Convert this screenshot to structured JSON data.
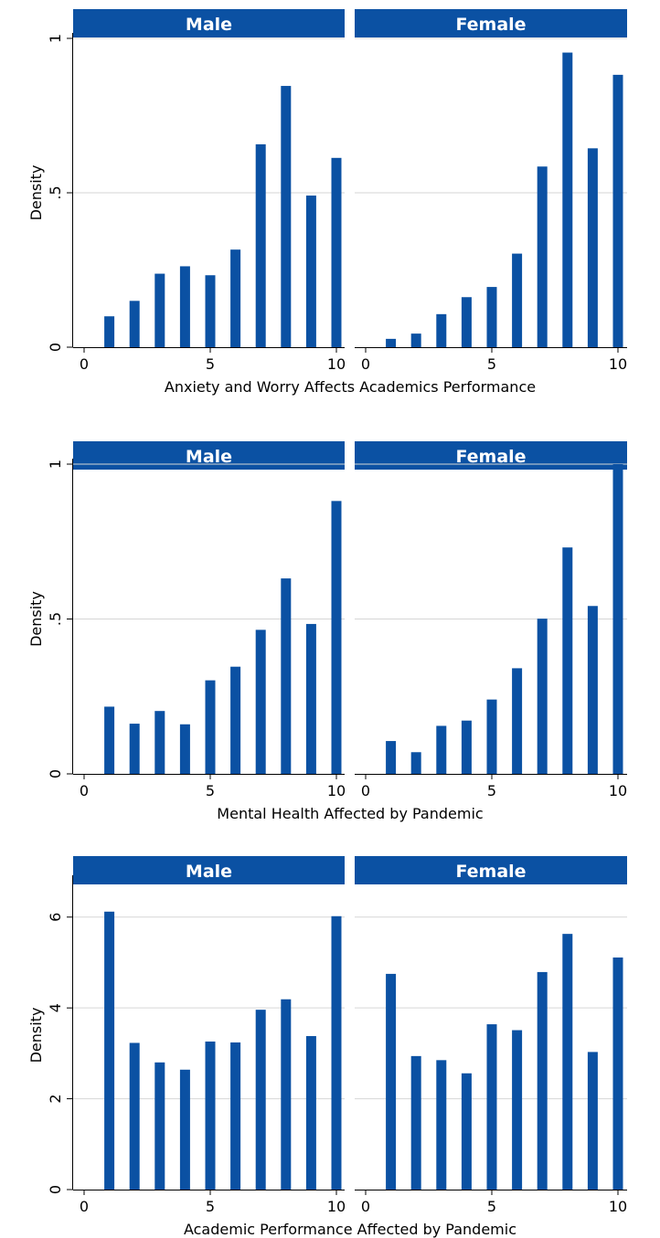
{
  "figure": {
    "bar_color": "#0b51a3",
    "header_color": "#0b51a3",
    "grid_color": "#d6d6d6",
    "background": "#ffffff"
  },
  "chart_data": [
    {
      "type": "bar",
      "xlabel": "Anxiety and Worry Affects Academics Performance",
      "ylabel": "Density",
      "xlim": [
        -0.5,
        10.4
      ],
      "ylim": [
        0,
        0.1
      ],
      "xticks": [
        0,
        5,
        10
      ],
      "xtick_labels": [
        "0",
        "5",
        "10"
      ],
      "yticks": [
        0,
        0.05,
        0.1
      ],
      "ytick_labels": [
        "0",
        ".5",
        "1"
      ],
      "grid": true,
      "categories": [
        1,
        2,
        3,
        4,
        5,
        6,
        7,
        8,
        9,
        10
      ],
      "series": [
        {
          "name": "Male",
          "values": [
            0.01,
            0.015,
            0.0238,
            0.0262,
            0.0233,
            0.0316,
            0.0657,
            0.0846,
            0.0491,
            0.0613
          ]
        },
        {
          "name": "Female",
          "values": [
            0.0027,
            0.0044,
            0.0107,
            0.0162,
            0.0195,
            0.0303,
            0.0585,
            0.0954,
            0.0644,
            0.0882
          ]
        }
      ]
    },
    {
      "type": "bar",
      "xlabel": "Mental Health Affected by Pandemic",
      "ylabel": "Density",
      "xlim": [
        -0.5,
        10.4
      ],
      "ylim": [
        0,
        0.1
      ],
      "xticks": [
        0,
        5,
        10
      ],
      "xtick_labels": [
        "0",
        "5",
        "10"
      ],
      "yticks": [
        0,
        0.05,
        0.1
      ],
      "ytick_labels": [
        "0",
        ".5",
        "1"
      ],
      "grid": true,
      "categories": [
        1,
        2,
        3,
        4,
        5,
        6,
        7,
        8,
        9,
        10
      ],
      "series": [
        {
          "name": "Male",
          "values": [
            0.0217,
            0.0162,
            0.0203,
            0.016,
            0.0302,
            0.0346,
            0.0465,
            0.0631,
            0.0484,
            0.0881
          ]
        },
        {
          "name": "Female",
          "values": [
            0.0106,
            0.007,
            0.0155,
            0.0172,
            0.024,
            0.0341,
            0.0501,
            0.0731,
            0.0542,
            0.1
          ]
        }
      ]
    },
    {
      "type": "bar",
      "xlabel": "Academic Performance Affected by Pandemic",
      "ylabel": "Density",
      "xlim": [
        -0.5,
        10.4
      ],
      "ylim": [
        0,
        0.068
      ],
      "xticks": [
        0,
        5,
        10
      ],
      "xtick_labels": [
        "0",
        "5",
        "10"
      ],
      "yticks": [
        0,
        0.02,
        0.04,
        0.06
      ],
      "ytick_labels": [
        "0",
        "2",
        "4",
        "6"
      ],
      "grid": true,
      "categories": [
        1,
        2,
        3,
        4,
        5,
        6,
        7,
        8,
        9,
        10
      ],
      "series": [
        {
          "name": "Male",
          "values": [
            0.0612,
            0.0323,
            0.028,
            0.0264,
            0.0326,
            0.0324,
            0.0396,
            0.0419,
            0.0338,
            0.0602
          ]
        },
        {
          "name": "Female",
          "values": [
            0.0475,
            0.0294,
            0.0285,
            0.0256,
            0.0364,
            0.0351,
            0.0479,
            0.0563,
            0.0303,
            0.0511
          ]
        }
      ]
    }
  ]
}
